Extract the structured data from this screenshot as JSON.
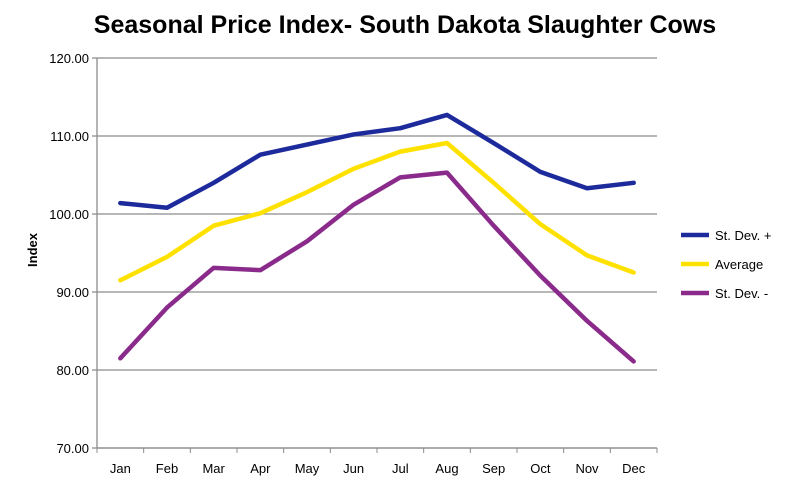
{
  "chart_data": {
    "type": "line",
    "title": "Seasonal Price Index- South Dakota Slaughter Cows",
    "xlabel": "",
    "ylabel": "Index",
    "ylim": [
      70,
      120
    ],
    "yticks": [
      "70.00",
      "80.00",
      "90.00",
      "100.00",
      "110.00",
      "120.00"
    ],
    "categories": [
      "Jan",
      "Feb",
      "Mar",
      "Apr",
      "May",
      "Jun",
      "Jul",
      "Aug",
      "Sep",
      "Oct",
      "Nov",
      "Dec"
    ],
    "grid": true,
    "legend_position": "right",
    "series": [
      {
        "name": "St. Dev. +",
        "color": "#1C2A9C",
        "values": [
          101.4,
          100.8,
          104.0,
          107.6,
          108.9,
          110.2,
          111.0,
          112.7,
          109.1,
          105.4,
          103.3,
          104.0
        ]
      },
      {
        "name": "Average",
        "color": "#FFE100",
        "values": [
          91.5,
          94.5,
          98.5,
          100.1,
          102.8,
          105.8,
          108.0,
          109.1,
          104.0,
          98.7,
          94.7,
          92.5
        ]
      },
      {
        "name": "St. Dev. -",
        "color": "#8A2B8C",
        "values": [
          81.5,
          88.0,
          93.1,
          92.8,
          96.5,
          101.2,
          104.7,
          105.3,
          98.5,
          92.1,
          86.3,
          81.1
        ]
      }
    ]
  }
}
